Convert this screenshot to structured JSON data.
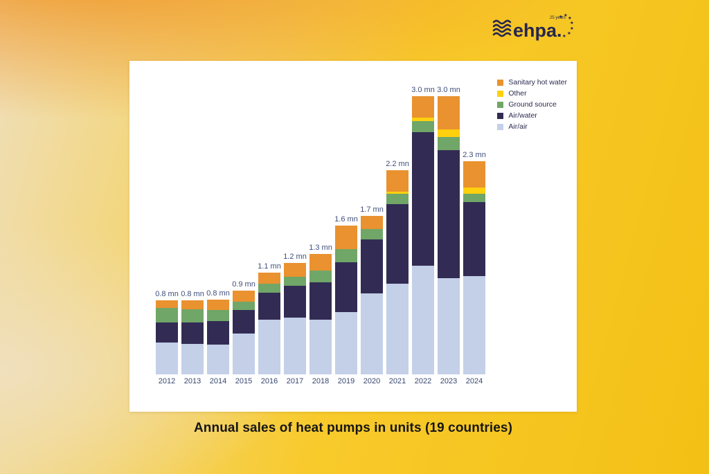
{
  "logo": {
    "brand": "ehpa.",
    "tagline": "25 years",
    "color": "#26264E"
  },
  "chart_data": {
    "type": "bar",
    "stacked": true,
    "title": "Annual sales of heat pumps in units (19 countries)",
    "unit": "mn",
    "grid": false,
    "legend_position": "top-right",
    "categories": [
      "2012",
      "2013",
      "2014",
      "2015",
      "2016",
      "2017",
      "2018",
      "2019",
      "2020",
      "2021",
      "2022",
      "2023",
      "2024"
    ],
    "totals_label": [
      "0.8 mn",
      "0.8 mn",
      "0.8 mn",
      "0.9 mn",
      "1.1 mn",
      "1.2 mn",
      "1.3 mn",
      "1.6 mn",
      "1.7 mn",
      "2.2 mn",
      "3.0 mn",
      "3.0 mn",
      "2.3 mn"
    ],
    "totals_mn": [
      0.8,
      0.8,
      0.8,
      0.9,
      1.1,
      1.2,
      1.3,
      1.6,
      1.7,
      2.2,
      3.0,
      3.0,
      2.3
    ],
    "series": [
      {
        "name": "Air/air",
        "color": "#C4CFE8",
        "values": [
          0.34,
          0.33,
          0.32,
          0.44,
          0.59,
          0.61,
          0.59,
          0.67,
          0.87,
          0.98,
          1.17,
          1.04,
          1.06
        ]
      },
      {
        "name": "Air/water",
        "color": "#322C54",
        "values": [
          0.22,
          0.23,
          0.25,
          0.25,
          0.29,
          0.34,
          0.4,
          0.54,
          0.58,
          0.86,
          1.44,
          1.38,
          0.8
        ]
      },
      {
        "name": "Ground source",
        "color": "#70A668",
        "values": [
          0.16,
          0.14,
          0.12,
          0.09,
          0.1,
          0.1,
          0.13,
          0.14,
          0.11,
          0.11,
          0.12,
          0.14,
          0.09
        ]
      },
      {
        "name": "Other",
        "color": "#FFD00E",
        "values": [
          0.0,
          0.0,
          0.0,
          0.0,
          0.0,
          0.0,
          0.0,
          0.0,
          0.0,
          0.02,
          0.04,
          0.08,
          0.07
        ]
      },
      {
        "name": "Sanitary hot water",
        "color": "#E9922F",
        "values": [
          0.08,
          0.1,
          0.11,
          0.12,
          0.12,
          0.15,
          0.18,
          0.25,
          0.14,
          0.23,
          0.23,
          0.36,
          0.28
        ]
      }
    ],
    "legend_order": [
      "Sanitary hot water",
      "Other",
      "Ground source",
      "Air/water",
      "Air/air"
    ]
  }
}
